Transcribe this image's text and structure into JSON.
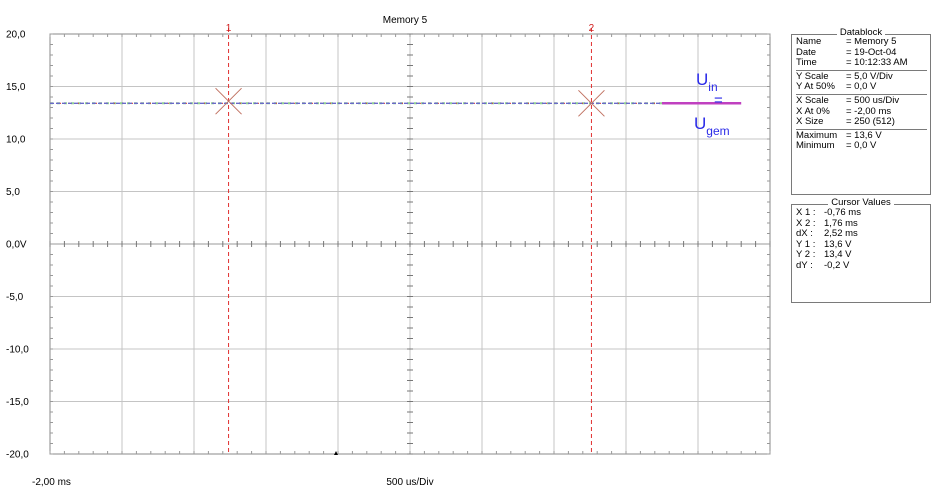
{
  "chart_data": {
    "type": "line",
    "title": "Memory 5",
    "y_ticks": [
      "20,0",
      "15,0",
      "10,0",
      "5,0",
      "0,0V",
      "-5,0",
      "-10,0",
      "-15,0",
      "-20,0"
    ],
    "ylim": [
      -20,
      20
    ],
    "x_range_ms": [
      -2.0,
      3.0
    ],
    "x_start_label": "-2,00 ms",
    "x_scale_label": "500 us/Div",
    "grid": true,
    "series": [
      {
        "color": "#6a6ac8",
        "x_ms": [
          -2.0,
          2.25
        ],
        "y": [
          13.4,
          13.4
        ]
      },
      {
        "color": "#c040c0",
        "x_ms": [
          2.25,
          2.8
        ],
        "y": [
          13.4,
          13.4
        ]
      }
    ],
    "cursors": [
      {
        "label": "1",
        "x_ms": -0.76,
        "y": 13.6
      },
      {
        "label": "2",
        "x_ms": 1.76,
        "y": 13.4
      }
    ],
    "annotation": {
      "u": "U",
      "in": "in",
      "eq": "=",
      "gem": "gem"
    }
  },
  "datablock": {
    "title": "Datablock",
    "rows": [
      {
        "k": "Name",
        "v": "= Memory 5"
      },
      {
        "k": "Date",
        "v": "= 19-Oct-04"
      },
      {
        "k": "Time",
        "v": "= 10:12:33 AM"
      },
      {
        "k": "Y Scale",
        "v": "=    5,0 V/Div"
      },
      {
        "k": "Y At 50%",
        "v": "=    0,0 V"
      },
      {
        "k": "X Scale",
        "v": "=   500 us/Div"
      },
      {
        "k": "X At 0%",
        "v": "= -2,00 ms"
      },
      {
        "k": "X Size",
        "v": "=   250 (512)"
      },
      {
        "k": "Maximum",
        "v": "= 13,6 V"
      },
      {
        "k": "Minimum",
        "v": "=   0,0 V"
      }
    ]
  },
  "cursor_values": {
    "title": "Cursor Values",
    "rows": [
      {
        "k": "X 1 :",
        "v": "-0,76 ms"
      },
      {
        "k": "X 2 :",
        "v": "1,76 ms"
      },
      {
        "k": "dX :",
        "v": "2,52 ms"
      },
      {
        "k": "Y 1 :",
        "v": "13,6 V"
      },
      {
        "k": "Y 2 :",
        "v": "13,4 V"
      },
      {
        "k": "dY :",
        "v": "-0,2 V"
      }
    ]
  }
}
